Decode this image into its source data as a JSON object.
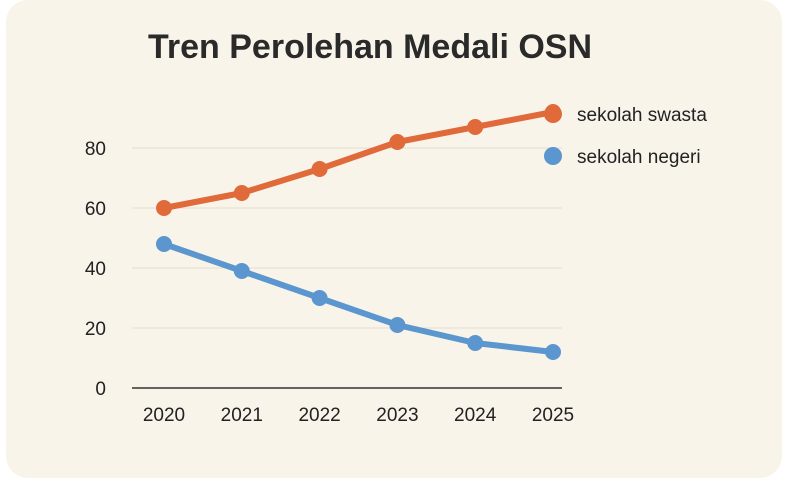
{
  "chart_data": {
    "type": "line",
    "title": "Tren Perolehan Medali OSN",
    "xlabel": "",
    "ylabel": "",
    "x": [
      "2020",
      "2021",
      "2022",
      "2023",
      "2024",
      "2025"
    ],
    "yticks": [
      0,
      20,
      40,
      60,
      80
    ],
    "ylim": [
      0,
      92
    ],
    "grid": true,
    "legend_position": "top-right",
    "series": [
      {
        "name": "sekolah swasta",
        "color": "#e06a3a",
        "values": [
          60,
          65,
          73,
          82,
          87,
          92
        ]
      },
      {
        "name": "sekolah negeri",
        "color": "#5b96cf",
        "values": [
          48,
          39,
          30,
          21,
          15,
          12
        ]
      }
    ]
  }
}
